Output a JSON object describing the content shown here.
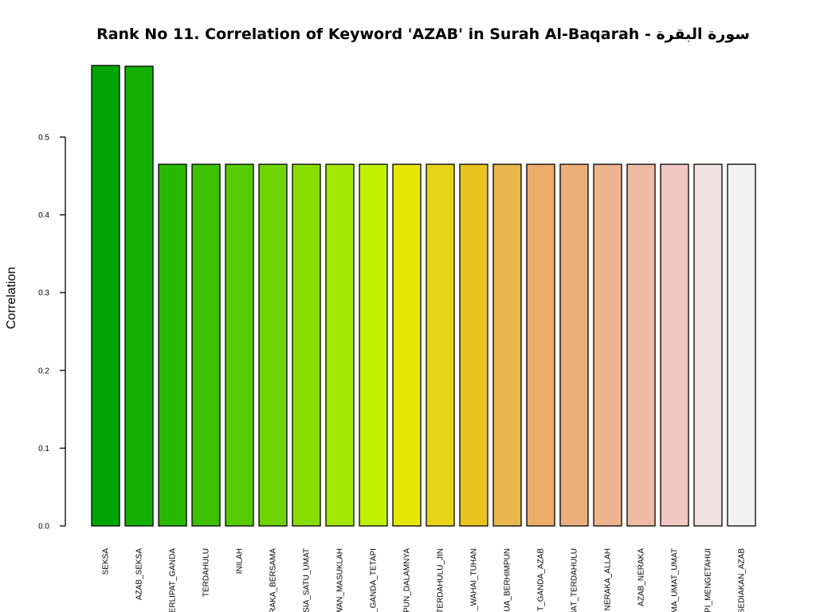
{
  "chart_data": {
    "type": "bar",
    "title": "Rank No 11. Correlation of Keyword 'AZAB' in Surah Al-Baqarah - سورة البقرة",
    "xlabel": "",
    "ylabel": "Correlation",
    "ylim": [
      0,
      0.6
    ],
    "yticks": [
      0.0,
      0.1,
      0.2,
      0.3,
      0.4,
      0.5
    ],
    "ytick_labels": [
      "0.0",
      "0.1",
      "0.2",
      "0.3",
      "0.4",
      "0.5"
    ],
    "grid": false,
    "legend": "none",
    "categories": [
      "SEKSA",
      "AZAB_SEKSA",
      "ERLIPAT_GANDA",
      "TERDAHULU",
      "INILAH",
      "RAKA_BERSAMA",
      "SIA_SATU_UMAT",
      "WAN_MASUKLAH",
      "_GANDA_TETAPI",
      "PUN_DALAMNYA",
      "TERDAHULU_JIN",
      "_WAHAI_TUHAN",
      "MUA_BERHIMPUN",
      "T_GANDA_AZAB",
      "MAT_TERDAHULU",
      "NERAKA_ALLAH",
      "AZAB_NERAKA",
      "MA_UMAT_UMAT",
      "PI_MENGETAHUI",
      "SEDIAKAN_AZAB"
    ],
    "values": [
      0.592,
      0.591,
      0.465,
      0.465,
      0.465,
      0.465,
      0.465,
      0.465,
      0.465,
      0.465,
      0.465,
      0.465,
      0.465,
      0.465,
      0.465,
      0.465,
      0.465,
      0.465,
      0.465,
      0.465
    ],
    "colors": [
      "#00A600",
      "#13AF00",
      "#28B800",
      "#3EC100",
      "#55CB00",
      "#6ED400",
      "#88DD00",
      "#A4E700",
      "#C1F000",
      "#E6E600",
      "#E8D31B",
      "#E9C320",
      "#EAB64E",
      "#EBAD67",
      "#ECB07D",
      "#EDB48E",
      "#EEBCA3",
      "#F0C9C0",
      "#F1E1E1",
      "#F2F2F2"
    ]
  }
}
